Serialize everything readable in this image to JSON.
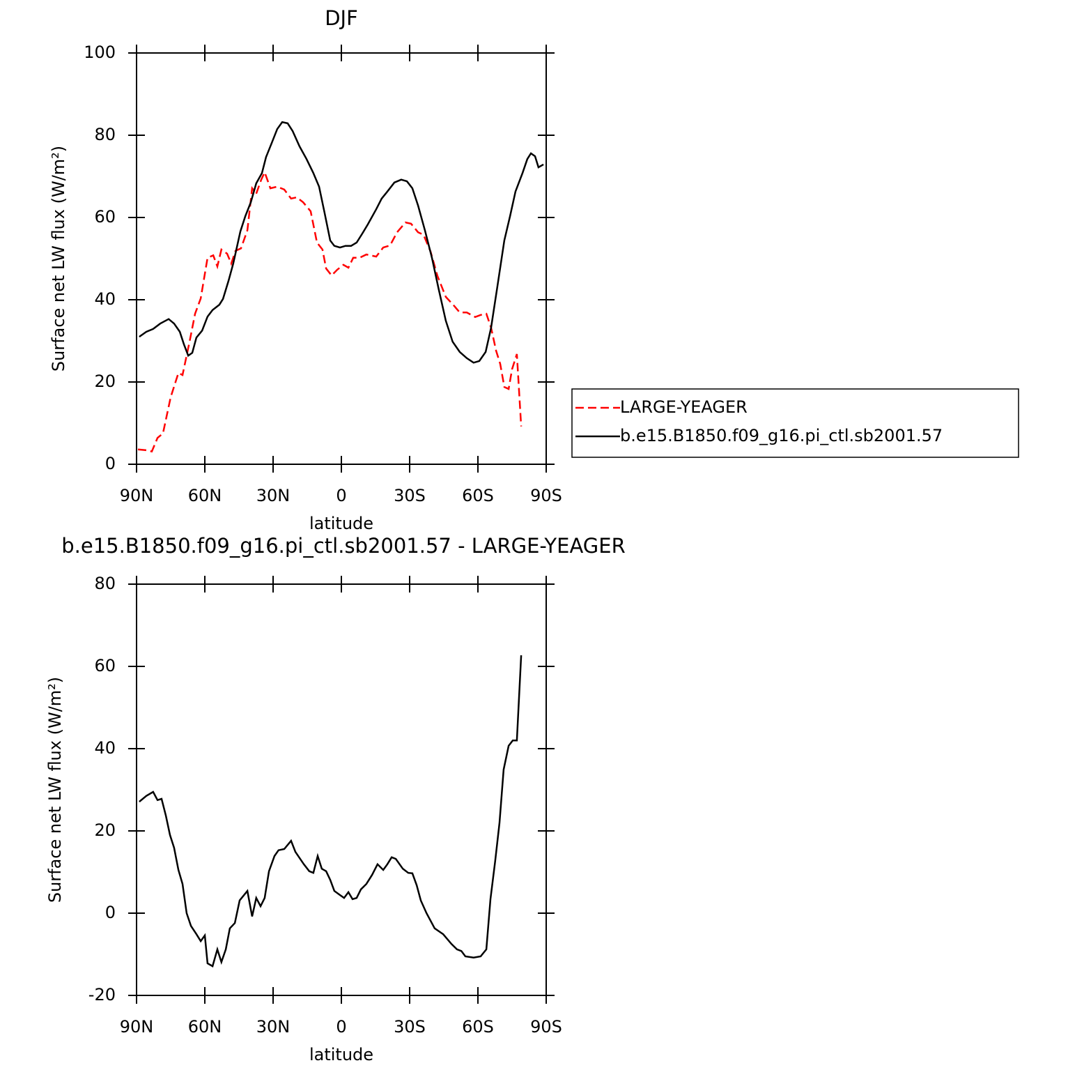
{
  "chart_data": [
    {
      "type": "line",
      "title": "DJF",
      "xlabel": "latitude",
      "ylabel": "Surface net LW flux (W/m²)",
      "xlim": [
        90,
        -90
      ],
      "ylim": [
        0,
        100
      ],
      "xticks": [
        {
          "value": 90,
          "label": "90N"
        },
        {
          "value": 60,
          "label": "60N"
        },
        {
          "value": 30,
          "label": "30N"
        },
        0,
        {
          "value": -30,
          "label": "30S"
        },
        {
          "value": -60,
          "label": "60S"
        },
        {
          "value": -90,
          "label": "90S"
        }
      ],
      "yticks": [
        0,
        20,
        40,
        60,
        80,
        100
      ],
      "legend": "right",
      "series": [
        {
          "name": "LARGE-YEAGER",
          "color": "#ff0000",
          "dash": true,
          "x": [
            89.4,
            85.7,
            83.3,
            80.8,
            78.4,
            75.0,
            71.6,
            69.8,
            66.7,
            64.3,
            61.8,
            58.8,
            56.3,
            54.5,
            52.7,
            50.2,
            48.4,
            46.5,
            44.1,
            41.3,
            39.2,
            37.4,
            35.2,
            33.7,
            31.2,
            28.2,
            25.1,
            22.1,
            19.6,
            16.8,
            13.5,
            10.7,
            8.3,
            6.7,
            4.3,
            1.8,
            -0.9,
            -3.1,
            -5.2,
            -8.0,
            -11.0,
            -15.3,
            -18.4,
            -21.4,
            -24.5,
            -28.2,
            -30.6,
            -33.7,
            -36.1,
            -39.2,
            -42.2,
            -45.9,
            -49.6,
            -52.0,
            -55.1,
            -58.8,
            -61.2,
            -63.7,
            -65.8,
            -68.0,
            -69.8,
            -71.6,
            -73.5,
            -75.0,
            -77.1,
            -79.0
          ],
          "values": [
            3.6,
            3.4,
            3.1,
            6.4,
            7.5,
            16.3,
            22.2,
            21.7,
            29.8,
            36.6,
            40.3,
            50.2,
            50.8,
            48.1,
            52.2,
            51.2,
            48.8,
            51.9,
            52.5,
            56.9,
            67.1,
            65.8,
            69.2,
            71.0,
            67.1,
            67.5,
            66.8,
            64.6,
            64.9,
            63.7,
            61.5,
            53.9,
            52.2,
            47.6,
            45.9,
            47.3,
            48.5,
            47.8,
            50.2,
            50.2,
            51.0,
            50.5,
            52.7,
            53.2,
            56.4,
            58.8,
            58.5,
            56.4,
            55.8,
            51.7,
            45.8,
            40.7,
            38.5,
            36.9,
            36.9,
            35.8,
            36.3,
            36.6,
            33.2,
            27.6,
            24.4,
            18.8,
            18.3,
            23.1,
            26.8,
            9.2
          ]
        },
        {
          "name": "b.e15.B1850.f09_g16.pi_ctl.sb2001.57",
          "color": "#000000",
          "x": [
            88.8,
            85.7,
            82.7,
            79.6,
            75.9,
            73.5,
            71.0,
            69.2,
            67.3,
            65.5,
            63.7,
            61.2,
            58.8,
            56.6,
            53.6,
            52.0,
            49.6,
            47.5,
            44.4,
            42.2,
            39.8,
            37.4,
            34.9,
            33.1,
            30.6,
            28.2,
            26.0,
            23.6,
            21.4,
            18.4,
            15.3,
            12.3,
            9.8,
            7.4,
            4.9,
            3.1,
            0.6,
            -1.8,
            -4.3,
            -6.7,
            -9.2,
            -11.6,
            -15.3,
            -17.7,
            -20.2,
            -23.3,
            -26.3,
            -28.8,
            -31.2,
            -33.7,
            -36.7,
            -39.8,
            -42.8,
            -45.9,
            -48.9,
            -52.0,
            -55.1,
            -58.1,
            -60.6,
            -63.4,
            -65.8,
            -68.6,
            -71.6,
            -74.1,
            -76.5,
            -79.6,
            -81.7,
            -83.3,
            -85.1,
            -86.6,
            -88.8
          ],
          "values": [
            31.0,
            32.2,
            32.9,
            34.2,
            35.3,
            34.2,
            32.2,
            29.2,
            26.4,
            27.1,
            30.8,
            32.5,
            35.9,
            37.5,
            38.8,
            40.2,
            44.6,
            48.8,
            56.6,
            60.3,
            63.7,
            68.3,
            70.8,
            74.7,
            78.1,
            81.5,
            83.2,
            82.9,
            81.0,
            77.3,
            74.2,
            70.8,
            67.5,
            61.2,
            54.4,
            53.1,
            52.7,
            53.1,
            53.1,
            53.9,
            56.1,
            58.3,
            62.0,
            64.6,
            66.3,
            68.5,
            69.2,
            68.8,
            67.1,
            62.9,
            56.9,
            50.2,
            42.5,
            34.9,
            29.8,
            27.3,
            25.8,
            24.7,
            25.1,
            27.3,
            33.2,
            43.4,
            54.4,
            60.3,
            66.3,
            70.8,
            74.2,
            75.6,
            74.9,
            72.2,
            72.9
          ]
        }
      ]
    },
    {
      "type": "line",
      "title": "b.e15.B1850.f09_g16.pi_ctl.sb2001.57 - LARGE-YEAGER",
      "xlabel": "latitude",
      "ylabel": "Surface net LW flux (W/m²)",
      "xlim": [
        90,
        -90
      ],
      "ylim": [
        -20,
        80
      ],
      "xticks": [
        {
          "value": 90,
          "label": "90N"
        },
        {
          "value": 60,
          "label": "60N"
        },
        {
          "value": 30,
          "label": "30N"
        },
        0,
        {
          "value": -30,
          "label": "30S"
        },
        {
          "value": -60,
          "label": "60S"
        },
        {
          "value": -90,
          "label": "90S"
        }
      ],
      "yticks": [
        -20,
        0,
        20,
        40,
        60,
        80
      ],
      "series": [
        {
          "color": "#000000",
          "x": [
            88.8,
            85.7,
            82.7,
            80.8,
            79.0,
            77.1,
            75.3,
            73.5,
            71.6,
            69.8,
            68.0,
            66.1,
            63.7,
            61.8,
            60.0,
            58.8,
            56.6,
            54.5,
            52.7,
            50.8,
            49.0,
            46.8,
            44.7,
            41.3,
            39.2,
            37.4,
            35.5,
            33.7,
            31.8,
            29.4,
            27.6,
            25.1,
            22.1,
            20.2,
            16.5,
            14.1,
            12.3,
            10.4,
            8.6,
            6.7,
            4.9,
            3.1,
            0.6,
            -1.2,
            -3.1,
            -4.9,
            -6.7,
            -8.6,
            -11.0,
            -13.5,
            -15.9,
            -18.4,
            -20.2,
            -22.1,
            -23.9,
            -27.0,
            -29.4,
            -31.2,
            -33.1,
            -34.9,
            -37.4,
            -41.0,
            -44.7,
            -48.4,
            -50.8,
            -52.7,
            -54.5,
            -58.1,
            -61.2,
            -63.7,
            -65.5,
            -67.6,
            -69.5,
            -71.3,
            -73.5,
            -75.3,
            -77.1,
            -79.0
          ],
          "values": [
            27.1,
            28.5,
            29.5,
            27.5,
            27.8,
            23.7,
            19.0,
            15.9,
            10.5,
            7.1,
            0.0,
            -3.1,
            -5.1,
            -6.8,
            -5.4,
            -12.2,
            -12.9,
            -8.8,
            -11.9,
            -8.8,
            -3.7,
            -2.4,
            3.1,
            5.4,
            -0.8,
            3.7,
            1.7,
            3.7,
            10.2,
            13.9,
            15.3,
            15.6,
            17.6,
            14.9,
            11.9,
            10.2,
            9.8,
            13.9,
            10.8,
            10.2,
            8.1,
            5.4,
            4.4,
            3.7,
            5.1,
            3.4,
            3.7,
            5.8,
            7.1,
            9.3,
            11.9,
            10.5,
            11.9,
            13.6,
            13.2,
            10.8,
            9.8,
            9.7,
            6.8,
            3.1,
            0.0,
            -3.7,
            -5.1,
            -7.5,
            -8.8,
            -9.2,
            -10.5,
            -10.8,
            -10.5,
            -8.8,
            3.4,
            12.7,
            22.0,
            34.9,
            40.7,
            42.0,
            42.0,
            62.7
          ]
        }
      ]
    }
  ]
}
